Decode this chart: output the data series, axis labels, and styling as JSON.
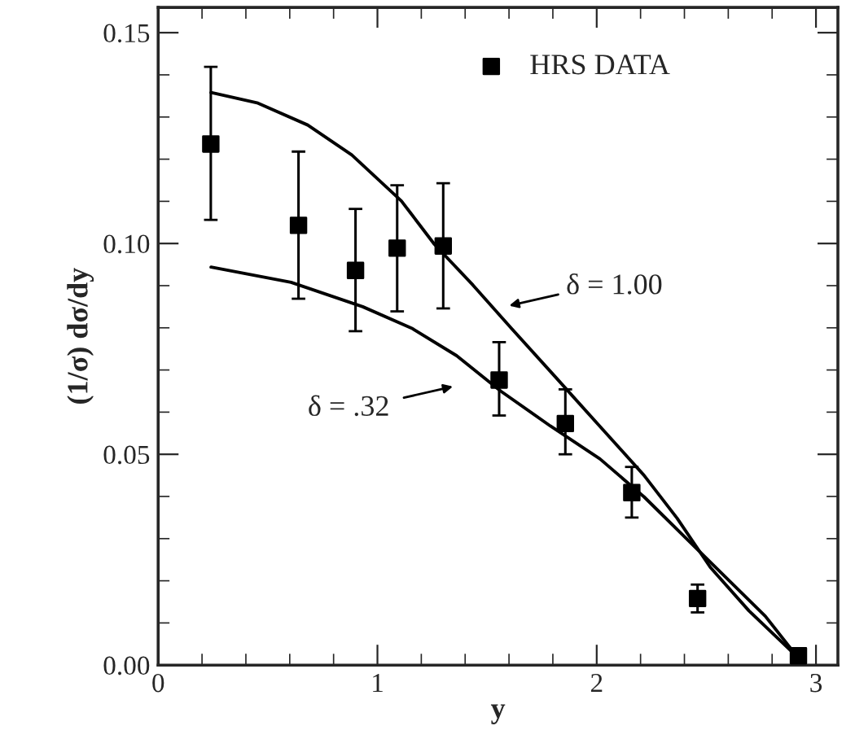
{
  "chart_data": {
    "type": "scatter",
    "xlabel": "y",
    "ylabel": "(1/σ) dσ/dy",
    "xlim": [
      0,
      3.1
    ],
    "ylim": [
      0,
      0.156
    ],
    "xticks": [
      0,
      1,
      2,
      3
    ],
    "yticks": [
      {
        "value": 0,
        "label": "0.00"
      },
      {
        "value": 0.05,
        "label": "0.05"
      },
      {
        "value": 0.1,
        "label": "0.10"
      },
      {
        "value": 0.15,
        "label": "0.15"
      }
    ],
    "grid": false,
    "legend": "top",
    "series": [
      {
        "name": "HRS DATA",
        "marker": "square",
        "color": "#000000",
        "x": [
          0.24,
          0.64,
          0.9,
          1.09,
          1.3,
          1.555,
          1.857,
          2.16,
          2.46,
          2.92
        ],
        "values": [
          0.1236,
          0.1043,
          0.0936,
          0.0989,
          0.0994,
          0.0676,
          0.0573,
          0.0409,
          0.0158,
          0.0022
        ],
        "errors": [
          [
            0.1056,
            0.1419
          ],
          [
            0.0869,
            0.1218
          ],
          [
            0.0792,
            0.1082
          ],
          [
            0.0839,
            0.1138
          ],
          [
            0.0846,
            0.1143
          ],
          [
            0.0592,
            0.0766
          ],
          [
            0.05,
            0.0654
          ],
          [
            0.035,
            0.047
          ],
          [
            0.0125,
            0.0191
          ],
          null
        ]
      },
      {
        "type": "line",
        "color": "#000000",
        "line_style": "solid",
        "marker": "none",
        "x": [
          0.241,
          0.455,
          0.682,
          0.883,
          1.109,
          1.26,
          1.436,
          1.612,
          1.814,
          2.015,
          2.216,
          2.367,
          2.518,
          2.694,
          2.916
        ],
        "values": [
          0.1358,
          0.1333,
          0.1281,
          0.121,
          0.1101,
          0.0998,
          0.0901,
          0.0798,
          0.0682,
          0.0566,
          0.045,
          0.0348,
          0.0232,
          0.0129,
          0.0019
        ]
      },
      {
        "type": "line",
        "color": "#000000",
        "line_style": "solid",
        "marker": "none",
        "x": [
          0.241,
          0.606,
          0.933,
          1.16,
          1.361,
          1.562,
          1.789,
          2.015,
          2.216,
          2.417,
          2.618,
          2.769,
          2.916
        ],
        "values": [
          0.0944,
          0.0908,
          0.085,
          0.0798,
          0.0734,
          0.065,
          0.0567,
          0.0489,
          0.0399,
          0.0296,
          0.0193,
          0.0116,
          0.0019
        ]
      }
    ],
    "annotations": [
      "δ = 1.00",
      "δ = .32"
    ]
  }
}
